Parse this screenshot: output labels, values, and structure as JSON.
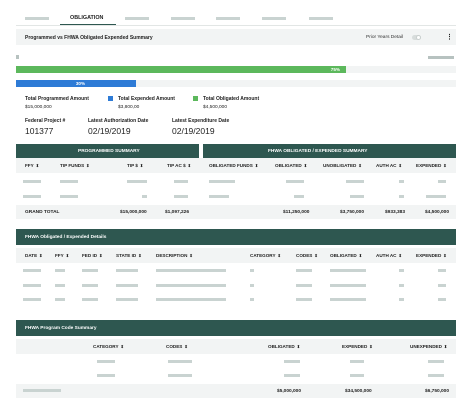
{
  "tabs": {
    "active_label": "OBLIGATION"
  },
  "summary_header": {
    "title": "Programmed vs FHWA Obligated Expended Summary",
    "toggle_label": "Prior Years Detail",
    "kebab": "⋮"
  },
  "progress": {
    "green_percent": 75,
    "green_label": "75%",
    "blue_percent": 30,
    "blue_label": "30%",
    "colors": {
      "green": "#5cb85c",
      "blue": "#2e7bd6",
      "track": "#f2f4f4"
    }
  },
  "legend": [
    {
      "label": "Total Programmed Amount",
      "value": "$15,000,000"
    },
    {
      "label": "Total Expended Amount",
      "value": "$3,800,00",
      "color": "#2e7bd6"
    },
    {
      "label": "Total Obligated Amount",
      "value": "$4,500,000",
      "color": "#5cb85c"
    }
  ],
  "project": {
    "federal_project_label": "Federal Project #",
    "federal_project_value": "101377",
    "auth_label": "Latest Authorization Date",
    "auth_value": "02/19/2019",
    "exp_label": "Latest Expenditure Date",
    "exp_value": "02/19/2019"
  },
  "programmed_summary": {
    "title": "PROGRAMMED SUMMARY",
    "columns": [
      "FFY",
      "TIP FUNDS",
      "TIP $",
      "TIP AC $"
    ],
    "total_label": "GRAND TOTAL",
    "totals": [
      "$15,000,000",
      "$1,097,226"
    ]
  },
  "fhwa_summary": {
    "title": "FHWA OBLIGATED / EXPENDED SUMMARY",
    "columns": [
      "OBLIGATED FUNDS",
      "OBLIGATED",
      "UNOBLIGATED",
      "AUTH AC",
      "EXPENDED"
    ],
    "totals": [
      "$11,250,000",
      "$3,750,000",
      "$933,383",
      "$4,500,000"
    ]
  },
  "details": {
    "title": "FHWA Obligated / Expended Details",
    "columns": [
      "DATE",
      "FFY",
      "FED ID",
      "STATE ID",
      "DESCRIPTION",
      "CATEGORY",
      "CODES",
      "OBLIGATED",
      "AUTH AC",
      "EXPENDED"
    ]
  },
  "program_code": {
    "title": "FHWA Program Code Summary",
    "columns": [
      "CATEGORY",
      "CODES",
      "OBLIGATED",
      "EXPENDED",
      "UNEXPENDED"
    ],
    "totals": [
      "$5,000,000",
      "$34,500,000",
      "$6,750,000"
    ]
  },
  "icons": {
    "sort": "⬍"
  }
}
